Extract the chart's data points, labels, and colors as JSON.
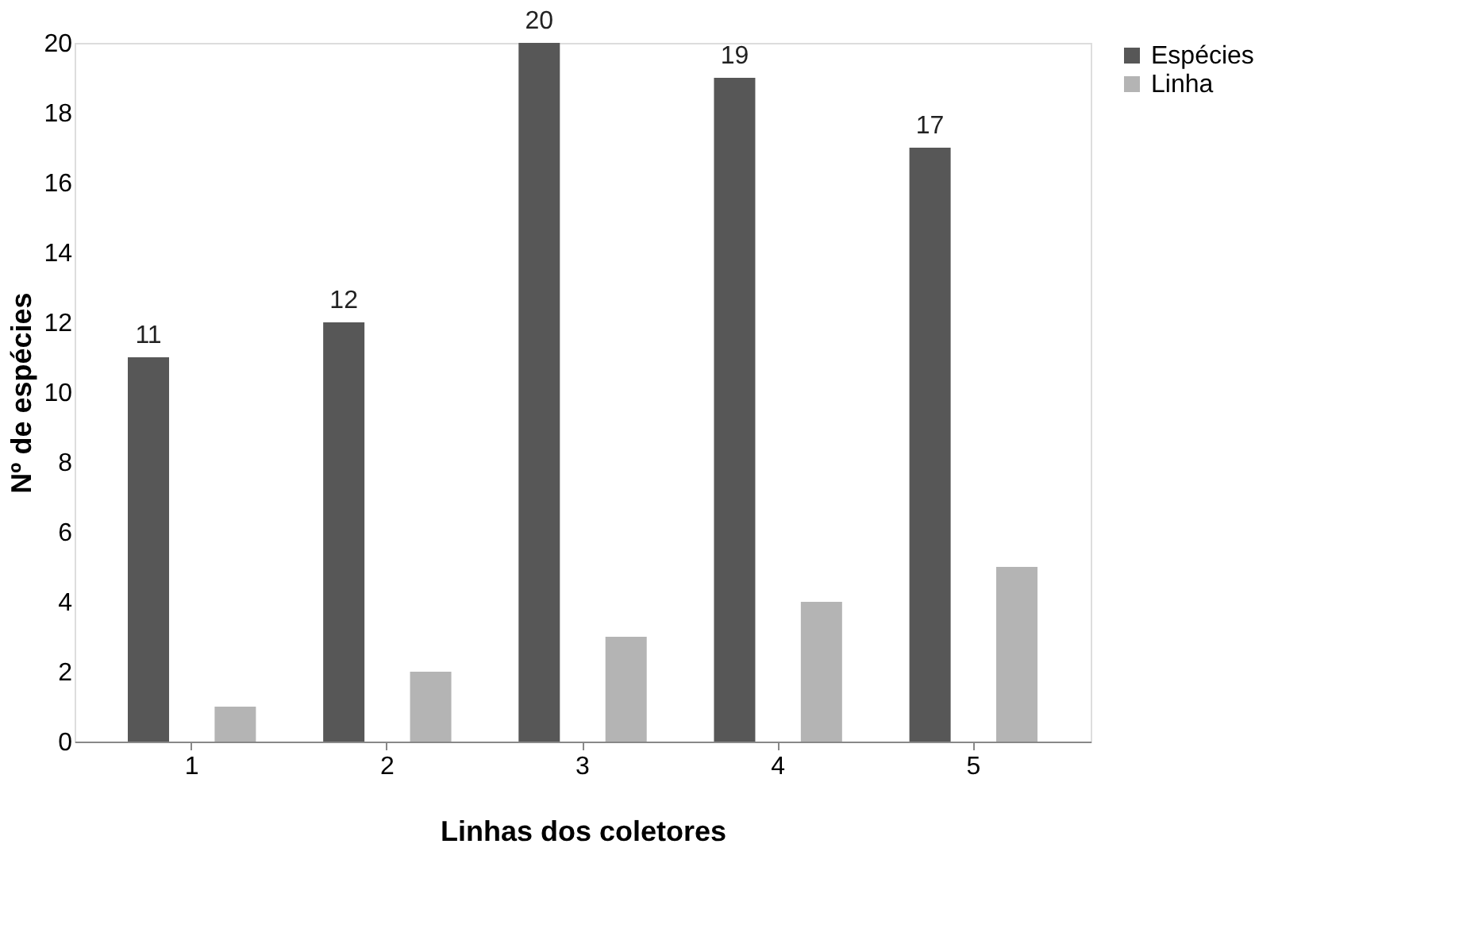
{
  "chart_data": {
    "type": "bar",
    "xlabel": "Linhas dos coletores",
    "ylabel": "Nº de espécies",
    "categories": [
      "1",
      "2",
      "3",
      "4",
      "5"
    ],
    "series": [
      {
        "name": "Espécies",
        "color": "#575757",
        "values": [
          11,
          12,
          20,
          19,
          17
        ],
        "value_labels": [
          "11",
          "12",
          "20",
          "19",
          "17"
        ]
      },
      {
        "name": "Linha",
        "color": "#b4b4b4",
        "values": [
          1,
          2,
          3,
          4,
          5
        ]
      }
    ],
    "ylim": [
      0,
      20
    ],
    "yticks": [
      0,
      2,
      4,
      6,
      8,
      10,
      12,
      14,
      16,
      18,
      20
    ],
    "grid": false,
    "legend": "right"
  }
}
